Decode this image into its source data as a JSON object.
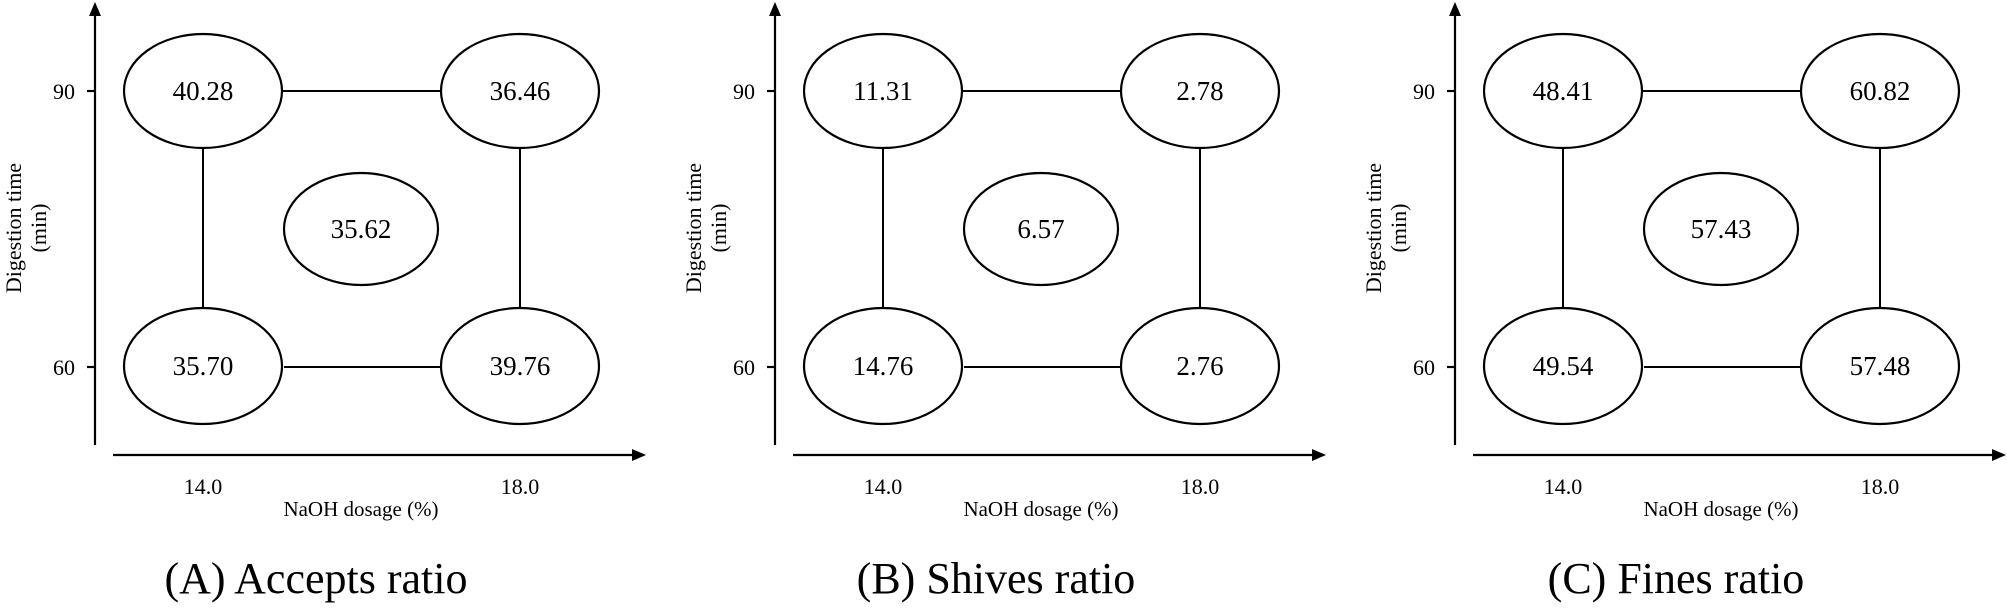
{
  "panels": [
    {
      "caption": "(A) Accepts ratio",
      "y_label_line1": "Digestion time",
      "y_label_line2": "(min)",
      "x_label": "NaOH dosage (%)",
      "x_ticks": [
        "14.0",
        "18.0"
      ],
      "y_ticks": [
        "90",
        "60"
      ],
      "values": {
        "top_left": "40.28",
        "top_right": "36.46",
        "center": "35.62",
        "bottom_left": "35.70",
        "bottom_right": "39.76"
      }
    },
    {
      "caption": "(B) Shives ratio",
      "y_label_line1": "Digestion time",
      "y_label_line2": "(min)",
      "x_label": "NaOH dosage (%)",
      "x_ticks": [
        "14.0",
        "18.0"
      ],
      "y_ticks": [
        "90",
        "60"
      ],
      "values": {
        "top_left": "11.31",
        "top_right": "2.78",
        "center": "6.57",
        "bottom_left": "14.76",
        "bottom_right": "2.76"
      }
    },
    {
      "caption": "(C) Fines ratio",
      "y_label_line1": "Digestion time",
      "y_label_line2": "(min)",
      "x_label": "NaOH dosage (%)",
      "x_ticks": [
        "14.0",
        "18.0"
      ],
      "y_ticks": [
        "90",
        "60"
      ],
      "values": {
        "top_left": "48.41",
        "top_right": "60.82",
        "center": "57.43",
        "bottom_left": "49.54",
        "bottom_right": "57.48"
      }
    }
  ]
}
